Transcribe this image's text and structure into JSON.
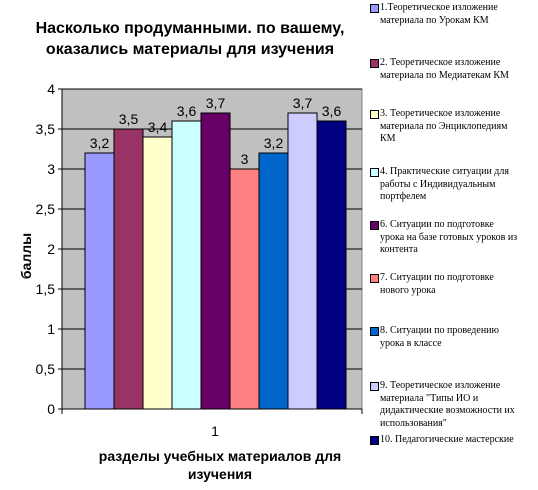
{
  "chart_data": {
    "type": "bar",
    "title_lines": [
      "Насколько продуманными. по вашему,",
      "оказались материалы для изучения"
    ],
    "xlabel_lines": [
      "разделы учебных материалов для",
      "изучения"
    ],
    "ylabel": "баллы",
    "categories": [
      "1"
    ],
    "ylim": [
      0,
      4
    ],
    "yticks": [
      "0",
      "0,5",
      "1",
      "1,5",
      "2",
      "2,5",
      "3",
      "3,5",
      "4"
    ],
    "grid": true,
    "legend_position": "right",
    "plot_background": "#c0c0c0",
    "series": [
      {
        "name_lines": [
          "1.Теоретическое изложение",
          "материала по Урокам КМ"
        ],
        "value": 3.2,
        "label": "3,2",
        "color": "#9999ff"
      },
      {
        "name_lines": [
          "2. Теоретическое изложение",
          "материала по Медиатекам КМ"
        ],
        "value": 3.5,
        "label": "3,5",
        "color": "#993366"
      },
      {
        "name_lines": [
          "3. Теоретическое изложение",
          "материала по Энциклопедиям",
          "КМ"
        ],
        "value": 3.4,
        "label": "3,4",
        "color": "#ffffcc"
      },
      {
        "name_lines": [
          "4. Практические ситуации для",
          "работы с Индивидуальным",
          "портфелем"
        ],
        "value": 3.6,
        "label": "3,6",
        "color": "#ccffff"
      },
      {
        "name_lines": [
          "6. Ситуации по подготовке",
          "урока на базе готовых уроков из",
          "контента"
        ],
        "value": 3.7,
        "label": "3,7",
        "color": "#660066"
      },
      {
        "name_lines": [
          "7.  Ситуации  по  подготовке",
          "нового урока"
        ],
        "value": 3.0,
        "label": "3",
        "color": "#ff8080"
      },
      {
        "name_lines": [
          "8. Ситуации по проведению",
          "урока в классе"
        ],
        "value": 3.2,
        "label": "3,2",
        "color": "#0066cc"
      },
      {
        "name_lines": [
          "9. Теоретическое изложение",
          "материала \"Типы ИО и",
          "дидактические возможности их",
          "использования\""
        ],
        "value": 3.7,
        "label": "3,7",
        "color": "#ccccff"
      },
      {
        "name_lines": [
          "10. Педагогические мастерские"
        ],
        "value": 3.6,
        "label": "3,6",
        "color": "#000080"
      }
    ]
  }
}
